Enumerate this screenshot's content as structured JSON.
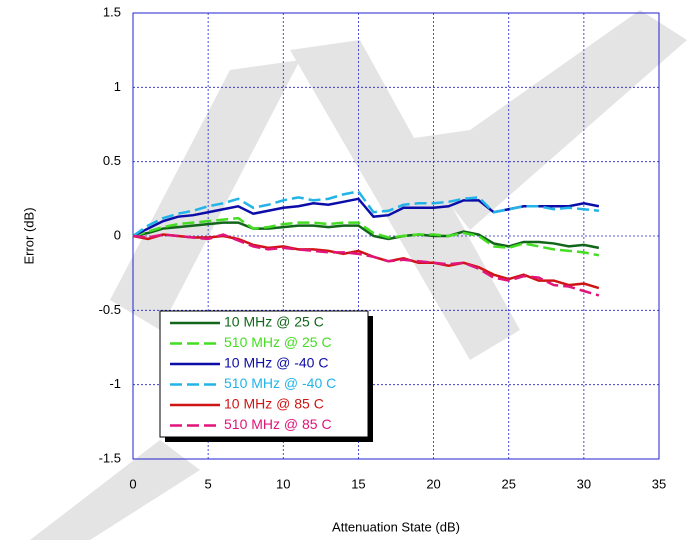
{
  "chart_data": {
    "type": "line",
    "x_label": "Attenuation State (dB)",
    "y_label": "Error (dB)",
    "x": [
      0,
      1,
      2,
      3,
      4,
      5,
      6,
      7,
      8,
      9,
      10,
      11,
      12,
      13,
      14,
      15,
      16,
      17,
      18,
      19,
      20,
      21,
      22,
      23,
      24,
      25,
      26,
      27,
      28,
      29,
      30,
      31
    ],
    "xlim": [
      0,
      35
    ],
    "xticks": [
      0,
      5,
      10,
      15,
      20,
      25,
      30,
      35
    ],
    "ylim": [
      -1.5,
      1.5
    ],
    "yticks": [
      -1.5,
      -1,
      -0.5,
      0,
      0.5,
      1,
      1.5
    ],
    "grid": true,
    "legend": "lower-left",
    "series": [
      {
        "name": "10 MHz @ 25 C",
        "color": "#11661a",
        "dashed": false,
        "values": [
          0,
          0.02,
          0.05,
          0.06,
          0.07,
          0.08,
          0.09,
          0.09,
          0.05,
          0.05,
          0.06,
          0.07,
          0.07,
          0.06,
          0.07,
          0.07,
          0.0,
          -0.02,
          0.0,
          0.01,
          0.0,
          0.0,
          0.03,
          0.01,
          -0.05,
          -0.07,
          -0.04,
          -0.04,
          -0.05,
          -0.07,
          -0.06,
          -0.08
        ]
      },
      {
        "name": "510 MHz @ 25 C",
        "color": "#44dd22",
        "dashed": true,
        "values": [
          0,
          0.03,
          0.06,
          0.08,
          0.09,
          0.1,
          0.11,
          0.12,
          0.05,
          0.06,
          0.08,
          0.09,
          0.09,
          0.08,
          0.09,
          0.09,
          0.02,
          -0.01,
          0.0,
          0.01,
          0.01,
          0.0,
          0.02,
          0.0,
          -0.07,
          -0.08,
          -0.05,
          -0.07,
          -0.09,
          -0.1,
          -0.11,
          -0.13
        ]
      },
      {
        "name": "10 MHz @ -40 C",
        "color": "#0c0ca8",
        "dashed": false,
        "values": [
          0,
          0.05,
          0.1,
          0.13,
          0.14,
          0.16,
          0.18,
          0.2,
          0.15,
          0.17,
          0.19,
          0.2,
          0.22,
          0.21,
          0.23,
          0.25,
          0.13,
          0.14,
          0.19,
          0.19,
          0.19,
          0.2,
          0.24,
          0.24,
          0.16,
          0.18,
          0.2,
          0.2,
          0.2,
          0.2,
          0.22,
          0.2
        ]
      },
      {
        "name": "510 MHz @ -40 C",
        "color": "#22b4e8",
        "dashed": true,
        "values": [
          0,
          0.07,
          0.12,
          0.15,
          0.17,
          0.2,
          0.22,
          0.25,
          0.19,
          0.21,
          0.24,
          0.26,
          0.24,
          0.25,
          0.28,
          0.3,
          0.16,
          0.17,
          0.21,
          0.22,
          0.22,
          0.23,
          0.25,
          0.26,
          0.16,
          0.18,
          0.2,
          0.2,
          0.18,
          0.19,
          0.18,
          0.17
        ]
      },
      {
        "name": "10 MHz @ 85 C",
        "color": "#d01414",
        "dashed": false,
        "values": [
          0,
          -0.02,
          0.01,
          0.0,
          -0.01,
          -0.01,
          0.0,
          -0.02,
          -0.06,
          -0.08,
          -0.07,
          -0.09,
          -0.09,
          -0.1,
          -0.12,
          -0.1,
          -0.14,
          -0.17,
          -0.15,
          -0.18,
          -0.18,
          -0.2,
          -0.18,
          -0.21,
          -0.26,
          -0.29,
          -0.26,
          -0.3,
          -0.3,
          -0.33,
          -0.32,
          -0.35
        ]
      },
      {
        "name": "510 MHz @ 85 C",
        "color": "#e0147a",
        "dashed": true,
        "values": [
          0,
          -0.01,
          0.01,
          0.0,
          -0.01,
          -0.02,
          0.01,
          -0.03,
          -0.07,
          -0.09,
          -0.08,
          -0.09,
          -0.1,
          -0.11,
          -0.11,
          -0.12,
          -0.14,
          -0.17,
          -0.16,
          -0.17,
          -0.18,
          -0.19,
          -0.18,
          -0.22,
          -0.28,
          -0.3,
          -0.27,
          -0.28,
          -0.33,
          -0.34,
          -0.37,
          -0.4
        ]
      }
    ]
  }
}
